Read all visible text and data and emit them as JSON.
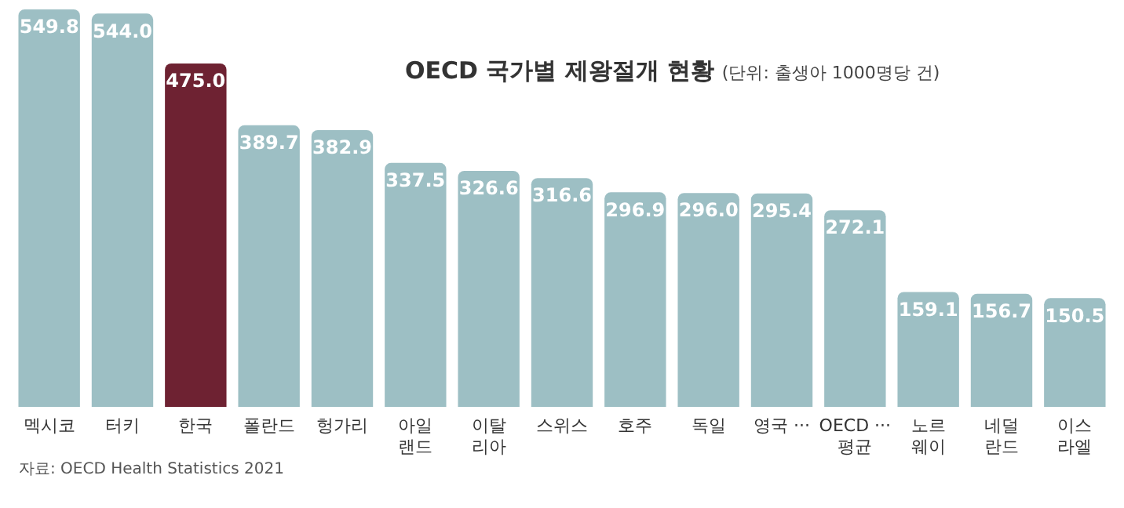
{
  "chart_data": {
    "type": "bar",
    "title": "OECD 국가별 제왕절개 현황",
    "subtitle": "(단위: 출생아 1000명당 건)",
    "categories": [
      "멕시코",
      "터키",
      "한국",
      "폴란드",
      "헝가리",
      "아일\n랜드",
      "이탈\n리아",
      "스위스",
      "호주",
      "독일",
      "영국 ···",
      "OECD ···\n평균",
      "노르\n웨이",
      "네덜\n란드",
      "이스\n라엘"
    ],
    "values": [
      549.8,
      544.0,
      475.0,
      389.7,
      382.9,
      337.5,
      326.6,
      316.6,
      296.9,
      296.0,
      295.4,
      272.1,
      159.1,
      156.7,
      150.5
    ],
    "colors": [
      "#9dbfc4",
      "#9dbfc4",
      "#6e2232",
      "#9dbfc4",
      "#9dbfc4",
      "#9dbfc4",
      "#9dbfc4",
      "#9dbfc4",
      "#9dbfc4",
      "#9dbfc4",
      "#9dbfc4",
      "#9dbfc4",
      "#9dbfc4",
      "#9dbfc4",
      "#9dbfc4"
    ],
    "value_labels": [
      "549.8",
      "544.0",
      "475.0",
      "389.7",
      "382.9",
      "337.5",
      "326.6",
      "316.6",
      "296.9",
      "296.0",
      "295.4",
      "272.1",
      "159.1",
      "156.7",
      "150.5"
    ],
    "grid": false,
    "legend": false,
    "annotations": [
      "자료: OECD Health Statistics 2021"
    ]
  }
}
